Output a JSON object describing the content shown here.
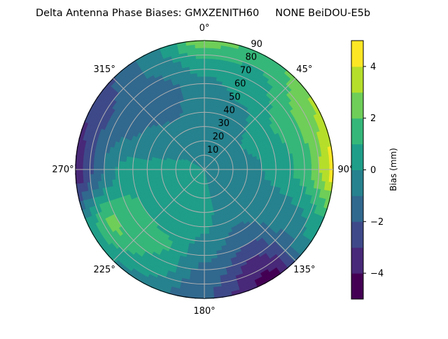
{
  "chart_data": {
    "type": "heatmap",
    "subtype": "polar-filled-contour",
    "title": "Delta Antenna Phase Biases: GMXZENITH60     NONE BeiDOU-E5b",
    "colormap": "viridis",
    "levels": [
      -5,
      -4,
      -3,
      -2,
      -1,
      0,
      1,
      2,
      3,
      4,
      5
    ],
    "level_colors": [
      "#440154",
      "#482878",
      "#3e4989",
      "#31688e",
      "#26828e",
      "#1f9e89",
      "#35b779",
      "#6ece58",
      "#b5de2b",
      "#fde725"
    ],
    "colorbar": {
      "label": "Bias (mm)",
      "ticks": [
        "−4",
        "−2",
        "0",
        "2",
        "4"
      ],
      "tick_values": [
        -4,
        -2,
        0,
        2,
        4
      ],
      "range": [
        -5,
        5
      ]
    },
    "angular_axis": {
      "direction": "clockwise",
      "zero": "north",
      "tick_labels": [
        "0°",
        "45°",
        "90°",
        "135°",
        "180°",
        "225°",
        "270°",
        "315°"
      ]
    },
    "radial_axis": {
      "range": [
        0,
        90
      ],
      "tick_labels": [
        "10",
        "20",
        "30",
        "40",
        "50",
        "60",
        "70",
        "80",
        "90"
      ]
    },
    "grid": true,
    "azimuth": [
      0,
      30,
      60,
      90,
      120,
      150,
      180,
      210,
      240,
      270,
      300,
      330
    ],
    "zenith": [
      0,
      15,
      30,
      45,
      60,
      75,
      90
    ],
    "values": [
      [
        0,
        -0.5,
        -0.5,
        -0.5,
        -0.3,
        0.5,
        2.8
      ],
      [
        0,
        -0.5,
        -0.5,
        -0.3,
        0.3,
        0.8,
        1.5
      ],
      [
        0,
        -0.5,
        0,
        0.5,
        1.2,
        2.2,
        3.2
      ],
      [
        0,
        -0.5,
        -0.5,
        0.2,
        0.8,
        2,
        4.5
      ],
      [
        0,
        -0.5,
        -0.5,
        -0.5,
        -0.5,
        -0.3,
        0.5
      ],
      [
        0,
        -0.5,
        -0.7,
        -1,
        -2,
        -3.5,
        -4.5
      ],
      [
        0,
        0.2,
        0.3,
        0,
        -0.8,
        -1.5,
        -2
      ],
      [
        0,
        0.3,
        0.5,
        0.8,
        1.2,
        0.8,
        -0.5
      ],
      [
        0,
        0.3,
        0.5,
        0.8,
        1.5,
        2.3,
        0.5
      ],
      [
        0,
        0.3,
        0.3,
        0.3,
        0.2,
        -1.5,
        -3.8
      ],
      [
        0,
        0,
        -0.3,
        -0.8,
        -1.3,
        -2,
        -3
      ],
      [
        0,
        -0.3,
        -0.6,
        -1.2,
        -1.5,
        -1,
        -1
      ]
    ]
  }
}
